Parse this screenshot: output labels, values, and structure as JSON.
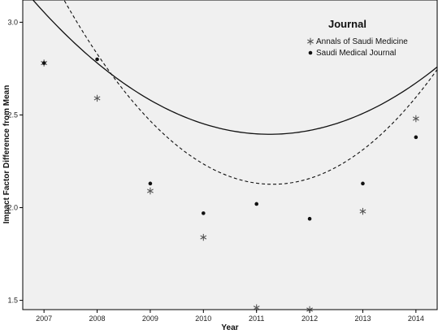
{
  "chart_data": {
    "type": "scatter",
    "title": "",
    "xlabel": "Year",
    "ylabel": "Impact Factor Difference from Mean",
    "x": [
      2007,
      2008,
      2009,
      2010,
      2011,
      2012,
      2013,
      2014
    ],
    "xlim": [
      2006.6,
      2014.4
    ],
    "ylim": [
      1.45,
      3.12
    ],
    "xticks": [
      2007,
      2008,
      2009,
      2010,
      2011,
      2012,
      2013,
      2014
    ],
    "yticks": [
      1.5,
      2.0,
      2.5,
      3.0
    ],
    "ytick_labels": [
      "1.5",
      "2.0",
      "2.5",
      "3.0"
    ],
    "grid": false,
    "legend": {
      "title": "Journal",
      "position": "top-right"
    },
    "series": [
      {
        "name": "Annals of Saudi Medicine",
        "marker": "star",
        "line_style": "dashed",
        "color": "#555555",
        "values": [
          2.78,
          2.59,
          2.09,
          1.84,
          1.46,
          1.45,
          1.98,
          2.48
        ],
        "fit_quadratic": [
          3.32,
          -0.555,
          0.0645
        ]
      },
      {
        "name": "Saudi Medical Journal",
        "marker": "dot",
        "line_style": "solid",
        "color": "#111111",
        "values": [
          2.78,
          2.8,
          2.13,
          1.97,
          2.02,
          1.94,
          2.13,
          2.38
        ],
        "fit_quadratic": [
          3.054,
          -0.31,
          0.0365
        ]
      }
    ]
  }
}
